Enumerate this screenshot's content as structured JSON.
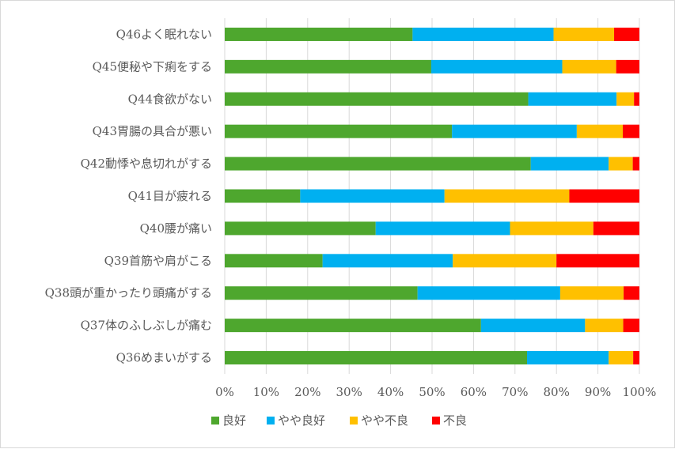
{
  "chart_data": {
    "type": "bar",
    "orientation": "horizontal",
    "stacked": "percent",
    "categories": [
      "Q46よく眠れない",
      "Q45便秘や下痢をする",
      "Q44食欲がない",
      "Q43胃腸の具合が悪い",
      "Q42動悸や息切れがする",
      "Q41目が疲れる",
      "Q40腰が痛い",
      "Q39首筋や肩がこる",
      "Q38頭が重かったり頭痛がする",
      "Q37体のふしぶしが痛む",
      "Q36めまいがする"
    ],
    "series": [
      {
        "name": "良好",
        "color": "#4ea72e",
        "values": [
          45.3,
          49.8,
          73.2,
          54.8,
          73.8,
          18.2,
          36.4,
          23.6,
          46.5,
          61.8,
          72.9
        ]
      },
      {
        "name": "やや良好",
        "color": "#00b0f0",
        "values": [
          34.0,
          31.6,
          21.3,
          30.1,
          18.8,
          34.8,
          32.4,
          31.4,
          34.4,
          25.1,
          19.7
        ]
      },
      {
        "name": "やや不良",
        "color": "#ffc000",
        "values": [
          14.6,
          13.0,
          4.2,
          11.1,
          5.8,
          30.1,
          20.1,
          25.0,
          15.3,
          9.2,
          5.9
        ]
      },
      {
        "name": "不良",
        "color": "#ff0000",
        "values": [
          6.1,
          5.6,
          1.3,
          4.0,
          1.6,
          16.9,
          11.1,
          20.0,
          3.8,
          3.9,
          1.5
        ]
      }
    ],
    "xlim": [
      0,
      100
    ],
    "xticks": [
      "0%",
      "10%",
      "20%",
      "30%",
      "40%",
      "50%",
      "60%",
      "70%",
      "80%",
      "90%",
      "100%"
    ],
    "grid": "vertical",
    "legend": "bottom",
    "title": "",
    "xlabel": "",
    "ylabel": ""
  }
}
